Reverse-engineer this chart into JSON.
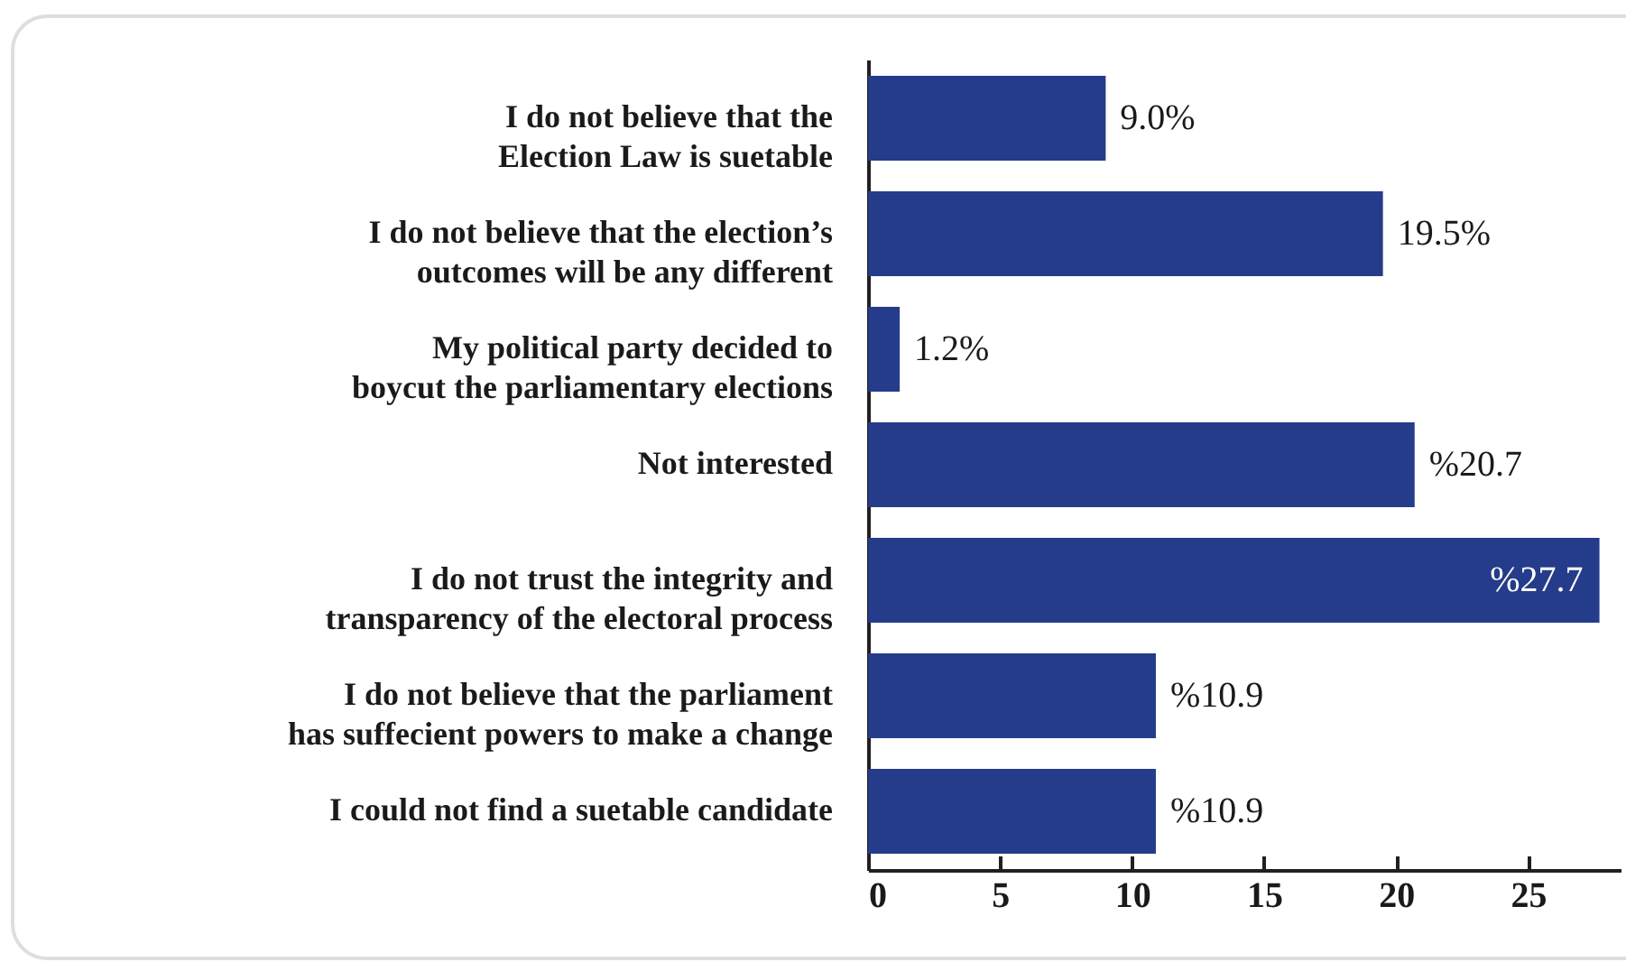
{
  "chart_data": {
    "type": "bar",
    "orientation": "horizontal",
    "categories": [
      "I do not believe that the\nElection Law is suetable",
      "I do not believe that the election’s\noutcomes will be any different",
      "My political party decided to\nboycut the parliamentary elections",
      "Not interested",
      "I do not trust the integrity and\ntransparency of the electoral process",
      "I do not believe that the parliament\nhas suffecient powers to make a change",
      "I could not find a suetable candidate"
    ],
    "values": [
      9.0,
      19.5,
      1.2,
      20.7,
      27.7,
      10.9,
      10.9
    ],
    "value_labels": [
      "9.0%",
      "19.5%",
      "1.2%",
      "%20.7",
      "%27.7",
      "%10.9",
      "%10.9"
    ],
    "color": "#253c8a",
    "xlim": [
      0,
      28.5
    ],
    "xticks": [
      0,
      5,
      10,
      15,
      20,
      25
    ],
    "grid": false
  }
}
